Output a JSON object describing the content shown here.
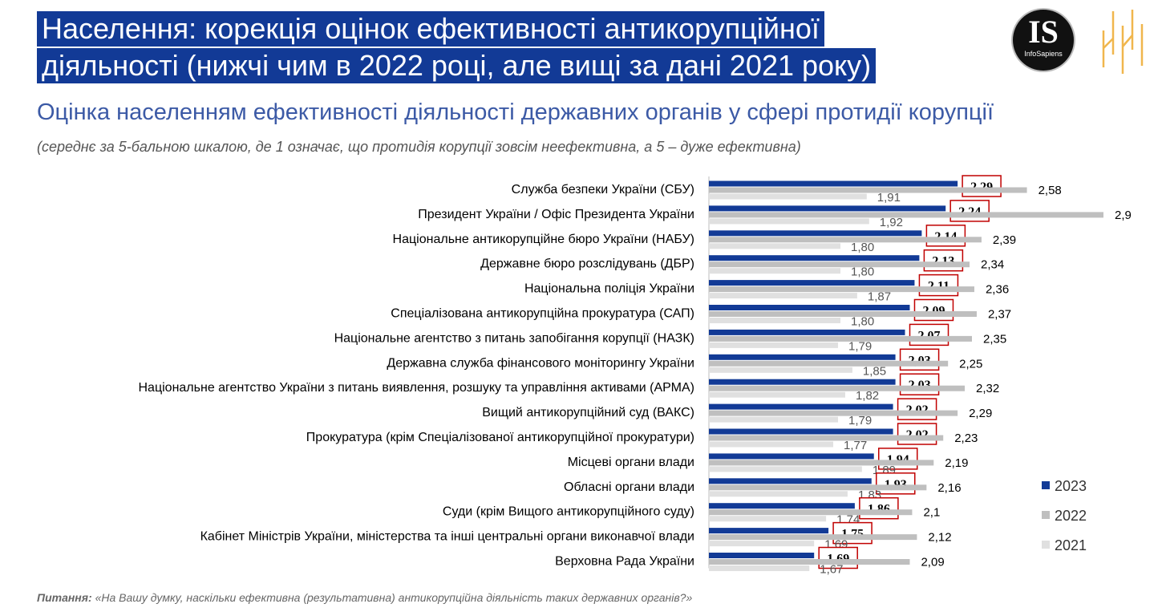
{
  "header": {
    "title_line1": "Населення: корекція оцінок ефективності антикорупційної",
    "title_line2": "діяльності (нижчі чим в 2022 році, але вищі за дані 2021 року)",
    "subtitle": "Оцінка населенням ефективності діяльності державних органів у сфері протидії корупції",
    "note": "(середнє за 5-бальною шкалою, де 1 означає, що протидія корупції зовсім неефективна, а 5 – дуже ефективна)"
  },
  "logo": {
    "letters": "IS",
    "name": "InfoSapiens"
  },
  "footer": {
    "question_label": "Питання:",
    "question_text": "«На Вашу думку, наскільки ефективна (результативна) антикорупційна діяльність таких державних органів?»"
  },
  "colors": {
    "series_2023": "#123a96",
    "series_2022": "#bfbfbf",
    "series_2021": "#e0e0e0",
    "highlight_box": "#c00000",
    "title_bg": "#123a96"
  },
  "chart_data": {
    "type": "bar",
    "orientation": "horizontal",
    "categories": [
      "Служба безпеки України (СБУ)",
      "Президент України / Офіс Президента України",
      "Національне антикорупційне бюро України (НАБУ)",
      "Державне бюро розслідувань (ДБР)",
      "Національна поліція України",
      "Спеціалізована антикорупційна прокуратура (САП)",
      "Національне агентство з питань запобігання корупції (НАЗК)",
      "Державна служба фінансового моніторингу України",
      "Національне агентство України з питань виявлення, розшуку та управління активами (АРМА)",
      "Вищий антикорупційний суд (ВАКС)",
      "Прокуратура (крім Спеціалізованої антикорупційної прокуратури)",
      "Місцеві органи влади",
      "Обласні органи влади",
      "Суди (крім Вищого антикорупційного суду)",
      "Кабінет Міністрів України, міністерства та інші центральні органи виконавчої влади",
      "Верховна Рада України"
    ],
    "series": [
      {
        "name": "2023",
        "values": [
          2.29,
          2.24,
          2.14,
          2.13,
          2.11,
          2.09,
          2.07,
          2.03,
          2.03,
          2.02,
          2.02,
          1.94,
          1.93,
          1.86,
          1.75,
          1.69
        ],
        "labels": [
          "2,29",
          "2,24",
          "2,14",
          "2,13",
          "2,11",
          "2,09",
          "2,07",
          "2,03",
          "2,03",
          "2,02",
          "2,02",
          "1,94",
          "1,93",
          "1,86",
          "1,75",
          "1,69"
        ]
      },
      {
        "name": "2022",
        "values": [
          2.58,
          2.9,
          2.39,
          2.34,
          2.36,
          2.37,
          2.35,
          2.25,
          2.32,
          2.29,
          2.23,
          2.19,
          2.16,
          2.1,
          2.12,
          2.09
        ],
        "labels": [
          "2,58",
          "2,9",
          "2,39",
          "2,34",
          "2,36",
          "2,37",
          "2,35",
          "2,25",
          "2,32",
          "2,29",
          "2,23",
          "2,19",
          "2,16",
          "2,1",
          "2,12",
          "2,09"
        ]
      },
      {
        "name": "2021",
        "values": [
          1.91,
          1.92,
          1.8,
          1.8,
          1.87,
          1.8,
          1.79,
          1.85,
          1.82,
          1.79,
          1.77,
          1.89,
          1.83,
          1.74,
          1.69,
          1.67
        ],
        "labels": [
          "1,91",
          "1,92",
          "1,80",
          "1,80",
          "1,87",
          "1,80",
          "1,79",
          "1,85",
          "1,82",
          "1,79",
          "1,77",
          "1,89",
          "1,83",
          "1,74",
          "1,69",
          "1,67"
        ]
      }
    ],
    "xlim": [
      1.25,
      2.9
    ],
    "grid": false,
    "legend_position": "bottom-right"
  }
}
